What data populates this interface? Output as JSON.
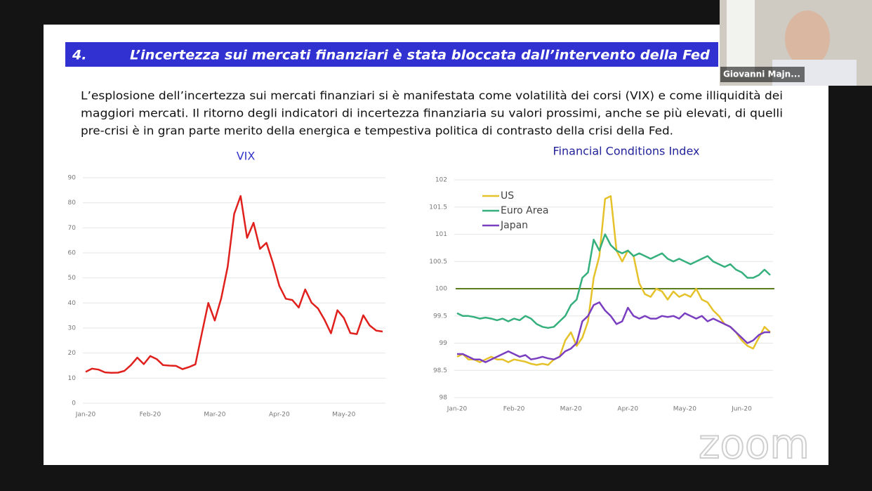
{
  "header": {
    "number": "4.",
    "title": "L’incertezza sui mercati finanziari è stata bloccata dall’intervento della Fed"
  },
  "body": {
    "lines": [
      "L’esplosione dell’incertezza sui mercati finanziari si è manifestata come volatilità dei corsi (VIX) e come illiquidità dei",
      "maggiori mercati. Il ritorno degli indicatori di incertezza finanziaria su valori prossimi, anche se più elevati, di quelli",
      "pre-crisi è in gran parte merito della energica e tempestiva politica di contrasto della crisi della Fed."
    ]
  },
  "participant": {
    "name": "Giovanni Majn..."
  },
  "watermark": "zoom",
  "chart_data": [
    {
      "type": "line",
      "title": "VIX",
      "title_color": "#3434c8",
      "color": "#e0201c",
      "grid": true,
      "categories": [
        "Jan-20",
        null,
        null,
        null,
        null,
        null,
        null,
        null,
        null,
        null,
        "Feb-20",
        null,
        null,
        null,
        null,
        null,
        null,
        null,
        null,
        null,
        "Mar-20",
        null,
        null,
        null,
        null,
        null,
        null,
        null,
        null,
        null,
        "Apr-20",
        null,
        null,
        null,
        null,
        null,
        null,
        null,
        null,
        null,
        "May-20",
        null,
        null,
        null,
        null,
        null,
        null
      ],
      "values": [
        12.5,
        13.8,
        13.4,
        12.3,
        12.1,
        12.2,
        12.9,
        15.2,
        18.2,
        15.6,
        18.8,
        17.6,
        15.2,
        15.0,
        14.9,
        13.6,
        14.4,
        15.5,
        27.9,
        40.0,
        33.0,
        41.9,
        54.5,
        75.5,
        82.7,
        66.0,
        72.0,
        61.6,
        64.0,
        56.0,
        46.8,
        41.7,
        41.2,
        38.2,
        45.4,
        40.1,
        37.8,
        33.3,
        27.9,
        37.1,
        34.0,
        28.0,
        27.6,
        35.1,
        31.0,
        29.0,
        28.6
      ],
      "ylim": [
        0,
        90
      ],
      "yticks": [
        0,
        10,
        20,
        30,
        40,
        50,
        60,
        70,
        80,
        90
      ]
    },
    {
      "type": "line",
      "title": "Financial Conditions Index",
      "title_color": "#22229a",
      "grid": true,
      "legend": "top-left",
      "reference_line": {
        "value": 100,
        "color": "#5b7d1e"
      },
      "categories": [
        "Jan-20",
        null,
        null,
        null,
        null,
        null,
        null,
        null,
        null,
        null,
        "Feb-20",
        null,
        null,
        null,
        null,
        null,
        null,
        null,
        null,
        null,
        "Mar-20",
        null,
        null,
        null,
        null,
        null,
        null,
        null,
        null,
        null,
        "Apr-20",
        null,
        null,
        null,
        null,
        null,
        null,
        null,
        null,
        null,
        "May-20",
        null,
        null,
        null,
        null,
        null,
        null,
        null,
        null,
        null,
        "Jun-20",
        null,
        null,
        null,
        null,
        null
      ],
      "series": [
        {
          "name": "US",
          "color": "#e6c22a",
          "values": [
            98.75,
            98.8,
            98.7,
            98.7,
            98.65,
            98.7,
            98.75,
            98.7,
            98.7,
            98.65,
            98.7,
            98.68,
            98.66,
            98.62,
            98.6,
            98.62,
            98.6,
            98.7,
            98.75,
            99.05,
            99.2,
            98.95,
            99.1,
            99.4,
            100.2,
            100.6,
            101.65,
            101.7,
            100.7,
            100.5,
            100.7,
            100.6,
            100.1,
            99.9,
            99.85,
            100.0,
            99.95,
            99.8,
            99.95,
            99.85,
            99.9,
            99.85,
            100.0,
            99.8,
            99.75,
            99.6,
            99.5,
            99.35,
            99.3,
            99.2,
            99.05,
            98.95,
            98.9,
            99.1,
            99.3,
            99.2
          ]
        },
        {
          "name": "Euro Area",
          "color": "#35b07c",
          "values": [
            99.55,
            99.5,
            99.5,
            99.48,
            99.45,
            99.47,
            99.45,
            99.42,
            99.45,
            99.4,
            99.45,
            99.42,
            99.5,
            99.45,
            99.35,
            99.3,
            99.28,
            99.3,
            99.4,
            99.5,
            99.7,
            99.8,
            100.2,
            100.3,
            100.9,
            100.7,
            101.0,
            100.8,
            100.7,
            100.65,
            100.7,
            100.6,
            100.65,
            100.6,
            100.55,
            100.6,
            100.65,
            100.55,
            100.5,
            100.55,
            100.5,
            100.45,
            100.5,
            100.55,
            100.6,
            100.5,
            100.45,
            100.4,
            100.45,
            100.35,
            100.3,
            100.2,
            100.2,
            100.25,
            100.35,
            100.25
          ]
        },
        {
          "name": "Japan",
          "color": "#7a3ec0",
          "values": [
            98.8,
            98.8,
            98.75,
            98.7,
            98.7,
            98.65,
            98.7,
            98.75,
            98.8,
            98.85,
            98.8,
            98.75,
            98.78,
            98.7,
            98.72,
            98.75,
            98.72,
            98.7,
            98.75,
            98.85,
            98.9,
            99.0,
            99.4,
            99.5,
            99.7,
            99.75,
            99.6,
            99.5,
            99.35,
            99.4,
            99.65,
            99.5,
            99.45,
            99.5,
            99.45,
            99.45,
            99.5,
            99.48,
            99.5,
            99.45,
            99.55,
            99.5,
            99.45,
            99.5,
            99.4,
            99.45,
            99.4,
            99.35,
            99.3,
            99.2,
            99.1,
            99.0,
            99.05,
            99.15,
            99.2,
            99.2
          ]
        }
      ],
      "ylim": [
        98,
        102
      ],
      "yticks": [
        98,
        98.5,
        99,
        99.5,
        100,
        100.5,
        101,
        101.5,
        102
      ]
    }
  ]
}
